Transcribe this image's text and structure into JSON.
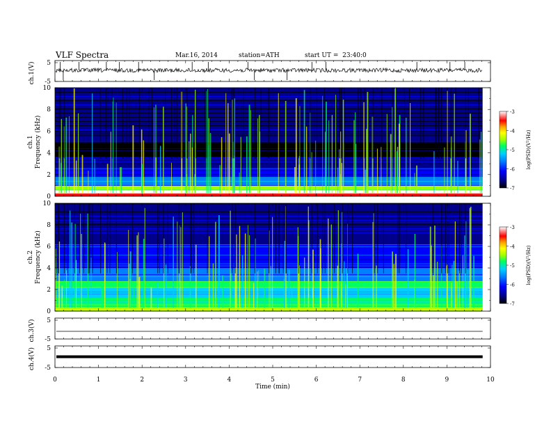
{
  "header": {
    "title": "VLF Spectra",
    "date": "Mar.16, 2014",
    "station": "station=ATH",
    "start": "start UT =  23:40:0"
  },
  "panels": {
    "ch1_wave_label": "ch.1(V)",
    "ch1_spec_label": "ch.1\nFrequency (kHz)",
    "ch2_spec_label": "ch.2\nFrequency (kHz)",
    "ch3_wave_label": "ch.3(V)",
    "ch4_wave_label": "ch.4(V)",
    "wave_ticks": [
      "5",
      "-5"
    ],
    "freq_ticks": [
      "0",
      "2",
      "4",
      "6",
      "8",
      "10"
    ]
  },
  "colorbar": {
    "label": "log(PSD)(V²/Hz)",
    "ticks": [
      "-3",
      "-4",
      "-5",
      "-6",
      "-7"
    ]
  },
  "chart_data": {
    "type": "heatmap",
    "title": "VLF Spectra",
    "xlabel": "Time (min)",
    "x_ticks": [
      "0",
      "1",
      "2",
      "3",
      "4",
      "5",
      "6",
      "7",
      "8",
      "9",
      "10"
    ],
    "xlim": [
      0,
      10
    ],
    "data_end_min": 9.82,
    "waveform_ylim": [
      -5,
      5
    ],
    "frequency_ylim_khz": [
      0,
      10
    ],
    "color_scale": {
      "min": -7,
      "max": -3,
      "unit": "log(PSD)(V²/Hz)"
    },
    "colormap": [
      "#000000",
      "#00008b",
      "#0000ff",
      "#0080ff",
      "#00d0ff",
      "#00ff60",
      "#a0ff00",
      "#ffff00",
      "#ffa000",
      "#ff0000",
      "#ffffff"
    ],
    "spectrogram_ch1_band_levels": [
      {
        "f_khz": [
          0.0,
          0.3
        ],
        "level": -3.3
      },
      {
        "f_khz": [
          0.3,
          0.6
        ],
        "level": -3.1
      },
      {
        "f_khz": [
          0.6,
          1.0
        ],
        "level": -4.8
      },
      {
        "f_khz": [
          1.0,
          1.8
        ],
        "level": -5.9
      },
      {
        "f_khz": [
          1.8,
          2.6
        ],
        "level": -6.2
      },
      {
        "f_khz": [
          2.6,
          3.6
        ],
        "level": -6.5
      },
      {
        "f_khz": [
          3.6,
          5.0
        ],
        "level": -6.9
      },
      {
        "f_khz": [
          5.0,
          6.0
        ],
        "level": -6.6
      },
      {
        "f_khz": [
          6.0,
          10.0
        ],
        "level": -6.7
      }
    ],
    "spectrogram_ch2_band_levels": [
      {
        "f_khz": [
          0.0,
          0.4
        ],
        "level": -4.6
      },
      {
        "f_khz": [
          0.4,
          1.2
        ],
        "level": -5.2
      },
      {
        "f_khz": [
          1.2,
          2.2
        ],
        "level": -5.5
      },
      {
        "f_khz": [
          2.2,
          2.8
        ],
        "level": -4.9
      },
      {
        "f_khz": [
          2.8,
          4.0
        ],
        "level": -5.9
      },
      {
        "f_khz": [
          4.0,
          5.0
        ],
        "level": -6.3
      },
      {
        "f_khz": [
          5.0,
          6.2
        ],
        "level": -6.1
      },
      {
        "f_khz": [
          6.2,
          10.0
        ],
        "level": -6.6
      }
    ],
    "ch1_spike_times_min": [
      0.12,
      0.19,
      0.55,
      1.18,
      1.48,
      1.92,
      2.28,
      3.15,
      3.52,
      4.43,
      4.58,
      5.33,
      5.9,
      6.22,
      8.31,
      9.07,
      9.41
    ]
  }
}
